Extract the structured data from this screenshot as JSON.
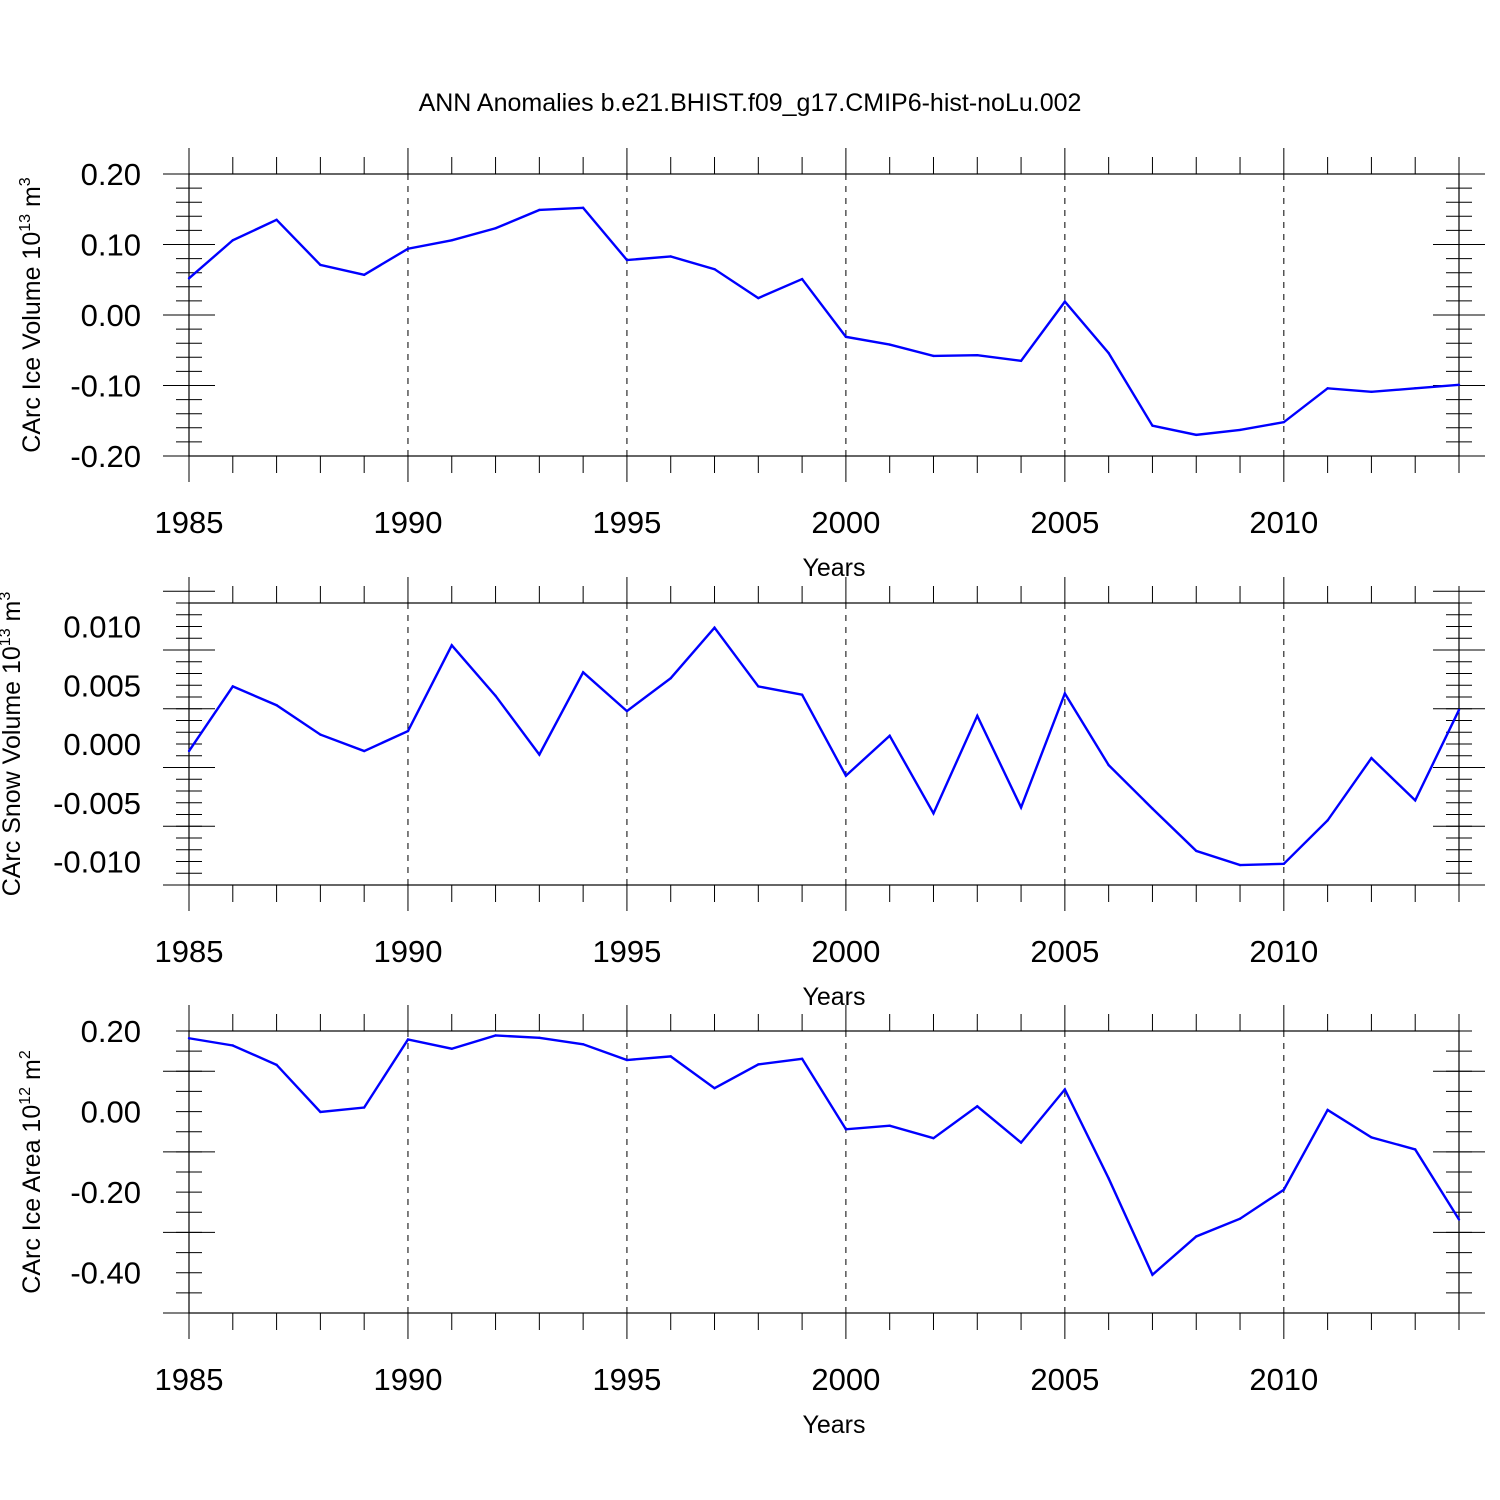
{
  "title": "ANN Anomalies b.e21.BHIST.f09_g17.CMIP6-hist-noLu.002",
  "chart_data": [
    {
      "type": "line",
      "ylabel": "CArc Ice Volume 10",
      "ylabel_exp": "13",
      "ylabel_unit": " m",
      "ylabel_unit_exp": "3",
      "xlabel": "Years",
      "xlim": [
        1985,
        2014
      ],
      "ylim": [
        -0.2,
        0.2
      ],
      "yticks": [
        0.2,
        0.1,
        0.0,
        -0.1,
        -0.2
      ],
      "ytick_labels": [
        "0.20",
        "0.10",
        "0.00",
        "-0.10",
        "-0.20"
      ],
      "ymajor": 0.1,
      "yminor": 0.02,
      "xticks": [
        1985,
        1990,
        1995,
        2000,
        2005,
        2010
      ],
      "xtick_labels": [
        "1985",
        "1990",
        "1995",
        "2000",
        "2005",
        "2010"
      ],
      "series": [
        {
          "name": "CArc Ice Volume",
          "color": "#0000ff",
          "x": [
            1985,
            1986,
            1987,
            1988,
            1989,
            1990,
            1991,
            1992,
            1993,
            1994,
            1995,
            1996,
            1997,
            1998,
            1999,
            2000,
            2001,
            2002,
            2003,
            2004,
            2005,
            2006,
            2007,
            2008,
            2009,
            2010,
            2011,
            2012,
            2013,
            2014
          ],
          "values": [
            0.052,
            0.106,
            0.135,
            0.071,
            0.057,
            0.094,
            0.106,
            0.123,
            0.149,
            0.152,
            0.078,
            0.083,
            0.065,
            0.024,
            0.051,
            -0.031,
            -0.042,
            -0.058,
            -0.057,
            -0.065,
            0.019,
            -0.054,
            -0.157,
            -0.17,
            -0.163,
            -0.152,
            -0.104,
            -0.109,
            -0.104,
            -0.099
          ]
        }
      ]
    },
    {
      "type": "line",
      "ylabel": "CArc Snow Volume 10",
      "ylabel_exp": "13",
      "ylabel_unit": " m",
      "ylabel_unit_exp": "3",
      "xlabel": "Years",
      "xlim": [
        1985,
        2014
      ],
      "ylim": [
        -0.012,
        0.012
      ],
      "yticks": [
        0.01,
        0.005,
        0.0,
        -0.005,
        -0.01
      ],
      "ytick_labels": [
        "0.010",
        "0.005",
        "0.000",
        "-0.005",
        "-0.010"
      ],
      "ymajor": 0.005,
      "yminor": 0.001,
      "xticks": [
        1985,
        1990,
        1995,
        2000,
        2005,
        2010
      ],
      "xtick_labels": [
        "1985",
        "1990",
        "1995",
        "2000",
        "2005",
        "2010"
      ],
      "series": [
        {
          "name": "CArc Snow Volume",
          "color": "#0000ff",
          "x": [
            1985,
            1986,
            1987,
            1988,
            1989,
            1990,
            1991,
            1992,
            1993,
            1994,
            1995,
            1996,
            1997,
            1998,
            1999,
            2000,
            2001,
            2002,
            2003,
            2004,
            2005,
            2006,
            2007,
            2008,
            2009,
            2010,
            2011,
            2012,
            2013,
            2014
          ],
          "values": [
            -0.0006,
            0.0049,
            0.0033,
            0.0008,
            -0.0006,
            0.0011,
            0.0084,
            0.0041,
            -0.0009,
            0.0061,
            0.0028,
            0.0056,
            0.0099,
            0.0049,
            0.0042,
            -0.0027,
            0.0007,
            -0.0059,
            0.0024,
            -0.0054,
            0.0043,
            -0.0018,
            -0.0055,
            -0.0091,
            -0.0103,
            -0.0102,
            -0.0065,
            -0.0012,
            -0.0048,
            0.0029
          ]
        }
      ]
    },
    {
      "type": "line",
      "ylabel": "CArc Ice Area 10",
      "ylabel_exp": "12",
      "ylabel_unit": " m",
      "ylabel_unit_exp": "2",
      "xlabel": "Years",
      "xlim": [
        1985,
        2014
      ],
      "ylim": [
        -0.5,
        0.2
      ],
      "yticks": [
        0.2,
        0.0,
        -0.2,
        -0.4
      ],
      "ytick_labels": [
        "0.20",
        "0.00",
        "-0.20",
        "-0.40"
      ],
      "ymajor": 0.2,
      "yminor": 0.05,
      "xticks": [
        1985,
        1990,
        1995,
        2000,
        2005,
        2010
      ],
      "xtick_labels": [
        "1985",
        "1990",
        "1995",
        "2000",
        "2005",
        "2010"
      ],
      "series": [
        {
          "name": "CArc Ice Area",
          "color": "#0000ff",
          "x": [
            1985,
            1986,
            1987,
            1988,
            1989,
            1990,
            1991,
            1992,
            1993,
            1994,
            1995,
            1996,
            1997,
            1998,
            1999,
            2000,
            2001,
            2002,
            2003,
            2004,
            2005,
            2006,
            2007,
            2008,
            2009,
            2010,
            2011,
            2012,
            2013,
            2014
          ],
          "values": [
            0.182,
            0.164,
            0.116,
            -0.001,
            0.01,
            0.179,
            0.156,
            0.189,
            0.183,
            0.167,
            0.128,
            0.137,
            0.058,
            0.117,
            0.131,
            -0.044,
            -0.035,
            -0.066,
            0.013,
            -0.077,
            0.055,
            -0.166,
            -0.405,
            -0.31,
            -0.266,
            -0.194,
            0.004,
            -0.064,
            -0.094,
            -0.268
          ]
        }
      ]
    }
  ]
}
